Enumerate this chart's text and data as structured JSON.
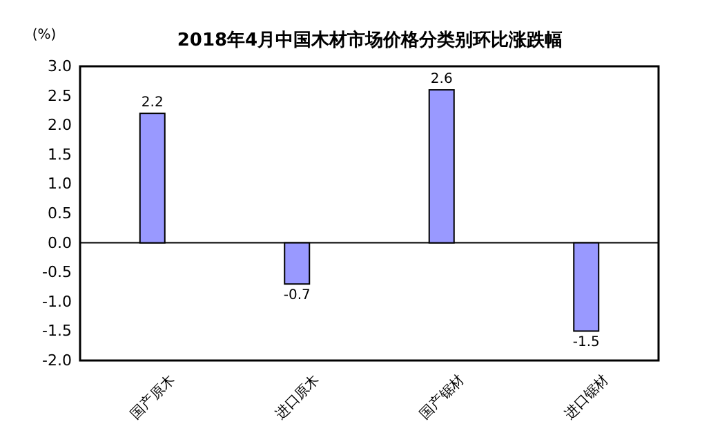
{
  "chart_data": {
    "type": "bar",
    "title": "2018年4月中国木材市场价格分类别环比涨跌幅",
    "ylabel": "(%)",
    "categories": [
      "国产原木",
      "进口原木",
      "国产锯材",
      "进口锯材"
    ],
    "values": [
      2.2,
      -0.7,
      2.6,
      -1.5
    ],
    "color": "#9999ff",
    "ylim": [
      -2,
      3
    ],
    "yticks": [
      {
        "value": -2,
        "label": "-2.0"
      },
      {
        "value": -1.5,
        "label": "-1.5"
      },
      {
        "value": -1,
        "label": "-1.0"
      },
      {
        "value": -0.5,
        "label": "-0.5"
      },
      {
        "value": 0,
        "label": "0.0"
      },
      {
        "value": 0.5,
        "label": "0.5"
      },
      {
        "value": 1,
        "label": "1.0"
      },
      {
        "value": 1.5,
        "label": "1.5"
      },
      {
        "value": 2,
        "label": "2.0"
      },
      {
        "value": 2.5,
        "label": "2.5"
      },
      {
        "value": 3,
        "label": "3.0"
      }
    ],
    "data_labels": true
  }
}
